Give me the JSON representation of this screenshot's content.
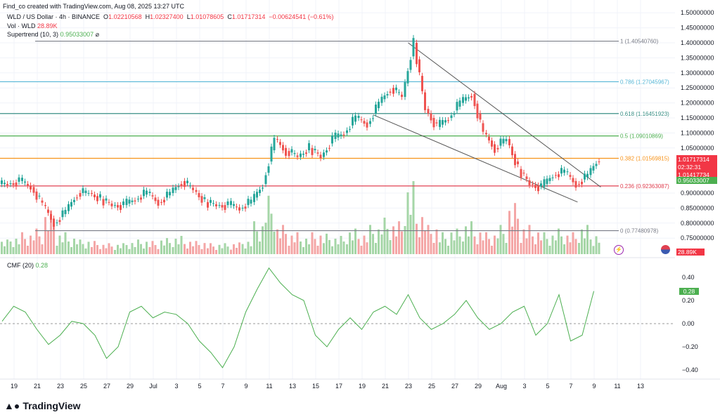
{
  "header": {
    "credit": "Find_co created with TradingView.com, Aug 08, 2025 13:27 UTC",
    "symbol": "WLD / US Dollar · 4h · BINANCE",
    "o_label": "O",
    "o": "1.02210568",
    "h_label": "H",
    "h": "1.02327400",
    "l_label": "L",
    "l": "1.01078605",
    "c_label": "C",
    "c": "1.01717314",
    "change": "−0.00624541 (−0.61%)",
    "vol_label": "Vol · WLD",
    "vol": "28.89K",
    "st_label": "Supertrend (10, 3)",
    "st": "0.95033007",
    "st_icon": "⌀"
  },
  "cmf": {
    "label": "CMF (20)",
    "value": "0.28"
  },
  "badges": {
    "price": "1.01717314",
    "countdown": "02:32:31",
    "st_price": "1.01417734",
    "st_value": "0.95033007",
    "vol": "28.89K"
  },
  "footer": {
    "logo": "TradingView"
  },
  "colors": {
    "up": "#26a69a",
    "down": "#ef5350",
    "vol_up": "#a5d6a7",
    "vol_down": "#f4a6a6"
  },
  "chart_data": {
    "type": "candlestick",
    "ylim": [
      0.7,
      1.52
    ],
    "y_ticks": [
      "1.50000000",
      "1.45000000",
      "1.40000000",
      "1.35000000",
      "1.30000000",
      "1.25000000",
      "1.20000000",
      "1.15000000",
      "1.10000000",
      "1.05000000",
      "0.90000000",
      "0.85000000",
      "0.80000000",
      "0.75000000"
    ],
    "x_ticks": [
      "19",
      "21",
      "23",
      "25",
      "27",
      "29",
      "Jul",
      "3",
      "5",
      "7",
      "9",
      "11",
      "13",
      "15",
      "17",
      "19",
      "21",
      "23",
      "25",
      "27",
      "29",
      "Aug",
      "3",
      "5",
      "7",
      "9",
      "11",
      "13"
    ],
    "start_date": "Jun 18",
    "closes": [
      0.93,
      0.94,
      0.92,
      0.86,
      0.8,
      0.84,
      0.9,
      0.9,
      0.88,
      0.86,
      0.86,
      0.88,
      0.9,
      0.87,
      0.9,
      0.94,
      0.91,
      0.87,
      0.86,
      0.86,
      0.85,
      0.87,
      0.93,
      1.08,
      1.04,
      1.02,
      1.05,
      1.02,
      1.08,
      1.1,
      1.15,
      1.13,
      1.2,
      1.25,
      1.22,
      1.4,
      1.18,
      1.12,
      1.15,
      1.2,
      1.23,
      1.1,
      1.05,
      1.08,
      0.98,
      0.93,
      0.92,
      0.96,
      0.97,
      0.93,
      0.96,
      1.02
    ],
    "volume_k": [
      20,
      25,
      30,
      35,
      60,
      30,
      25,
      20,
      18,
      15,
      15,
      18,
      20,
      18,
      22,
      25,
      20,
      18,
      15,
      15,
      16,
      20,
      45,
      80,
      40,
      30,
      25,
      30,
      28,
      25,
      35,
      30,
      40,
      50,
      45,
      100,
      60,
      40,
      30,
      35,
      45,
      35,
      30,
      40,
      70,
      40,
      35,
      30,
      35,
      30,
      40,
      29
    ],
    "cmf": [
      0.02,
      0.15,
      0.1,
      -0.05,
      -0.18,
      -0.1,
      0.02,
      0.0,
      -0.1,
      -0.3,
      -0.2,
      0.1,
      0.15,
      0.05,
      0.1,
      0.08,
      0.0,
      -0.15,
      -0.25,
      -0.38,
      -0.2,
      0.1,
      0.3,
      0.48,
      0.35,
      0.25,
      0.2,
      -0.1,
      -0.2,
      -0.05,
      0.05,
      -0.05,
      0.1,
      0.15,
      0.08,
      0.25,
      0.05,
      -0.05,
      0.0,
      0.08,
      0.2,
      0.05,
      -0.05,
      0.0,
      0.1,
      0.15,
      -0.1,
      0.0,
      0.25,
      -0.15,
      -0.1,
      0.28
    ],
    "fib": [
      {
        "label": "1 (1.40540760)",
        "value": 1.4054,
        "color": "#787b86"
      },
      {
        "label": "0.786 (1.27045967)",
        "value": 1.27046,
        "color": "#56b6d6"
      },
      {
        "label": "0.618 (1.16451923)",
        "value": 1.16452,
        "color": "#3a8f86"
      },
      {
        "label": "0.5 (1.09010869)",
        "value": 1.09011,
        "color": "#4caf50"
      },
      {
        "label": "0.382 (1.01569815)",
        "value": 1.0157,
        "color": "#f7931a"
      },
      {
        "label": "0.236 (0.92363087)",
        "value": 0.92363,
        "color": "#e04050"
      },
      {
        "label": "0 (0.77480978)",
        "value": 0.77481,
        "color": "#787b86"
      }
    ],
    "cmf_ticks": [
      "0.40",
      "0.20",
      "0.00",
      "−0.20",
      "−0.40"
    ]
  }
}
